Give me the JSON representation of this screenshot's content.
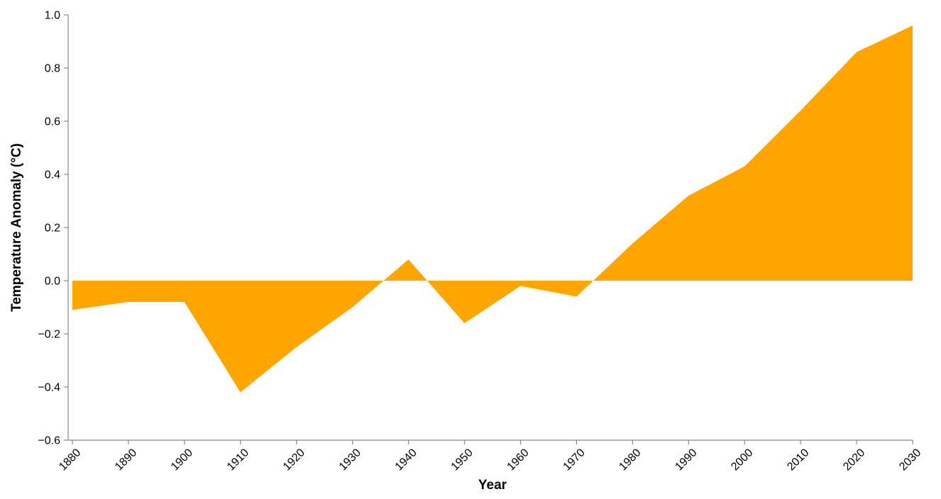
{
  "chart_data": {
    "type": "area",
    "title": "",
    "xlabel": "Year",
    "ylabel": "Temperature Anomaly (°C)",
    "x": [
      1880,
      1890,
      1900,
      1910,
      1920,
      1930,
      1940,
      1950,
      1960,
      1970,
      1980,
      1990,
      2000,
      2010,
      2020,
      2030
    ],
    "values": [
      -0.11,
      -0.08,
      -0.08,
      -0.42,
      -0.25,
      -0.1,
      0.08,
      -0.16,
      -0.02,
      -0.06,
      0.14,
      0.32,
      0.43,
      0.64,
      0.86,
      0.96
    ],
    "xlim": [
      1880,
      2030
    ],
    "ylim": [
      -0.6,
      1.0
    ],
    "x_ticks": [
      "1880",
      "1890",
      "1900",
      "1910",
      "1920",
      "1930",
      "1940",
      "1950",
      "1960",
      "1970",
      "1980",
      "1990",
      "2000",
      "2010",
      "2020",
      "2030"
    ],
    "y_ticks": [
      "−0.6",
      "−0.4",
      "−0.2",
      "0.0",
      "0.2",
      "0.4",
      "0.6",
      "0.8",
      "1.0"
    ],
    "y_tick_values": [
      -0.6,
      -0.4,
      -0.2,
      0.0,
      0.2,
      0.4,
      0.6,
      0.8,
      1.0
    ],
    "fill_color": "#FFA500",
    "grid": false,
    "legend": "none"
  }
}
